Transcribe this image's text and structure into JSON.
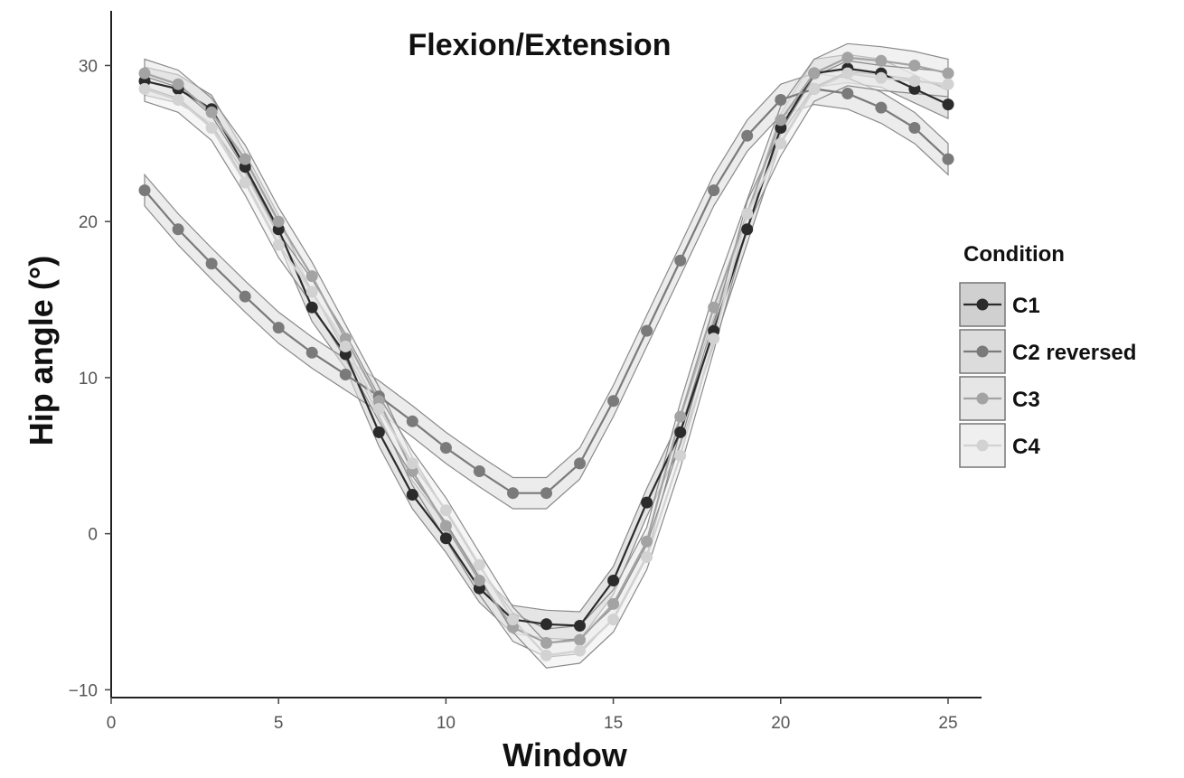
{
  "chart_data": {
    "type": "line",
    "title": "Flexion/Extension",
    "xlabel": "Window",
    "ylabel": "Hip angle (°)",
    "xlim": [
      0,
      26
    ],
    "ylim": [
      -10.5,
      33.5
    ],
    "xticks": [
      0,
      5,
      10,
      15,
      20,
      25
    ],
    "yticks": [
      -10,
      0,
      10,
      20,
      30
    ],
    "xtick_labels": [
      "0",
      "5",
      "10",
      "15",
      "20",
      "25"
    ],
    "ytick_labels": [
      "−10",
      "0",
      "10",
      "20",
      "30"
    ],
    "x": [
      1,
      2,
      3,
      4,
      5,
      6,
      7,
      8,
      9,
      10,
      11,
      12,
      13,
      14,
      15,
      16,
      17,
      18,
      19,
      20,
      21,
      22,
      23,
      24,
      25
    ],
    "legend": {
      "title": "Condition",
      "position": "right"
    },
    "grid": false,
    "series": [
      {
        "name": "C1",
        "color": "#2b2b2b",
        "band_fill": "#d0d0d0",
        "values": [
          29.0,
          28.5,
          27.2,
          23.5,
          19.5,
          14.5,
          11.5,
          6.5,
          2.5,
          -0.3,
          -3.5,
          -5.5,
          -5.8,
          -5.9,
          -3.0,
          2.0,
          6.5,
          13.0,
          19.5,
          26.0,
          29.5,
          29.8,
          29.5,
          28.5,
          27.5
        ],
        "band": 0.9
      },
      {
        "name": "C2 reversed",
        "color": "#7a7a7a",
        "band_fill": "#dcdcdc",
        "values": [
          22.0,
          19.5,
          17.3,
          15.2,
          13.2,
          11.6,
          10.2,
          8.8,
          7.2,
          5.5,
          4.0,
          2.6,
          2.6,
          4.5,
          8.5,
          13.0,
          17.5,
          22.0,
          25.5,
          27.8,
          28.5,
          28.2,
          27.3,
          26.0,
          24.0
        ],
        "band": 1.0
      },
      {
        "name": "C3",
        "color": "#a3a3a3",
        "band_fill": "#e6e6e6",
        "values": [
          29.5,
          28.8,
          27.0,
          24.0,
          20.0,
          16.5,
          12.5,
          8.5,
          4.0,
          0.5,
          -3.0,
          -6.0,
          -7.0,
          -6.8,
          -4.5,
          -0.5,
          7.5,
          14.5,
          20.5,
          26.5,
          29.5,
          30.5,
          30.3,
          30.0,
          29.5
        ],
        "band": 0.9
      },
      {
        "name": "C4",
        "color": "#d2d2d2",
        "band_fill": "#efefef",
        "values": [
          28.5,
          27.8,
          26.0,
          22.5,
          18.5,
          15.5,
          12.0,
          8.0,
          4.5,
          1.5,
          -2.0,
          -5.5,
          -7.8,
          -7.5,
          -5.5,
          -1.5,
          5.0,
          12.5,
          20.5,
          25.0,
          28.5,
          29.5,
          29.2,
          29.0,
          28.8
        ],
        "band": 0.8
      }
    ]
  }
}
